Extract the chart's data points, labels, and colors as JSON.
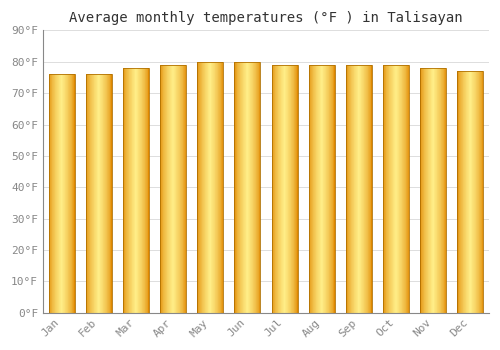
{
  "title": "Average monthly temperatures (°F ) in Talisayan",
  "months": [
    "Jan",
    "Feb",
    "Mar",
    "Apr",
    "May",
    "Jun",
    "Jul",
    "Aug",
    "Sep",
    "Oct",
    "Nov",
    "Dec"
  ],
  "values": [
    76,
    76,
    78,
    79,
    80,
    80,
    79,
    79,
    79,
    79,
    78,
    77
  ],
  "bar_color_center": "#FFEE88",
  "bar_color_edge": "#E08800",
  "bar_outline_color": "#B07000",
  "ylim": [
    0,
    90
  ],
  "yticks": [
    0,
    10,
    20,
    30,
    40,
    50,
    60,
    70,
    80,
    90
  ],
  "background_color": "#ffffff",
  "plot_bg_color": "#ffffff",
  "grid_color": "#dddddd",
  "title_fontsize": 10,
  "tick_fontsize": 8,
  "tick_color": "#888888",
  "font_family": "monospace",
  "bar_width": 0.7,
  "n_gradient_segments": 60
}
